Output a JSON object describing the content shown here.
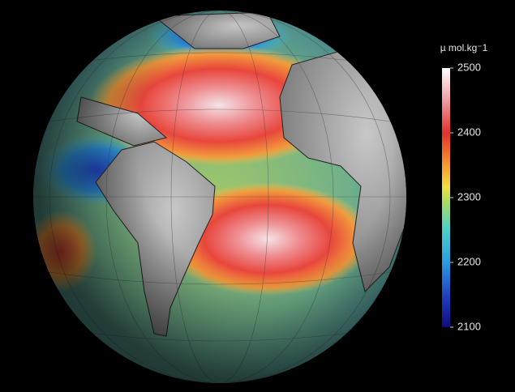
{
  "colorbar": {
    "label": "µ mol.kg⁻1",
    "lim": [
      2100,
      2500
    ],
    "ticks": [
      2500,
      2400,
      2300,
      2200,
      2100
    ]
  }
}
